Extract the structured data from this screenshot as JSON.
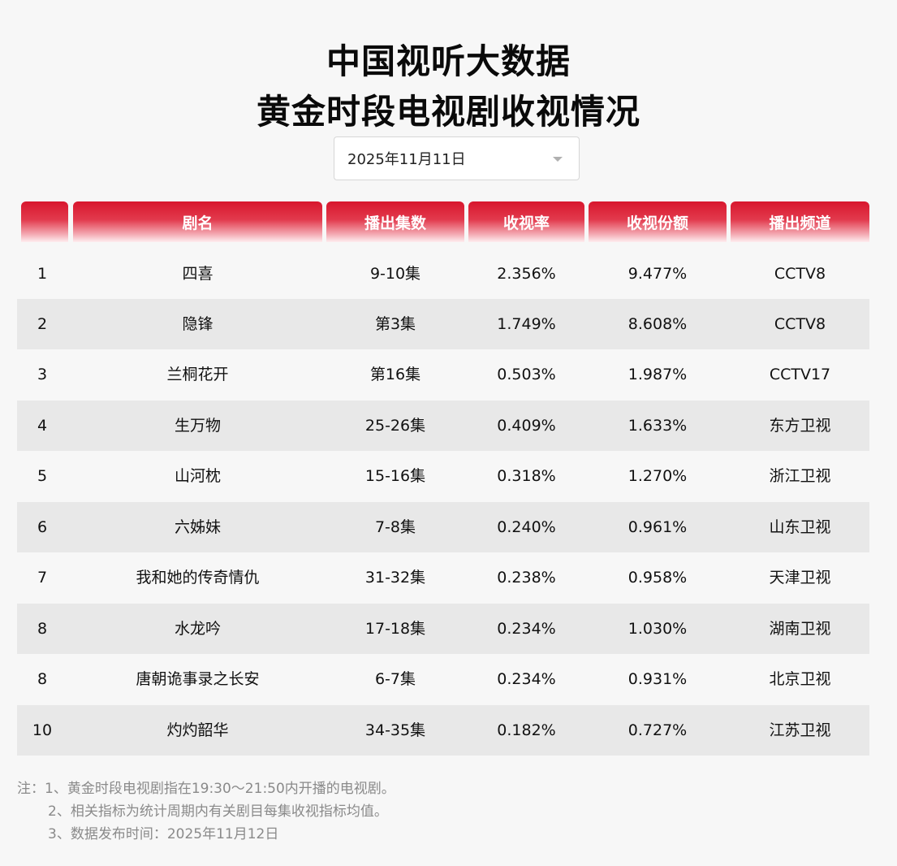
{
  "title": {
    "line1": "中国视听大数据",
    "line2": "黄金时段电视剧收视情况"
  },
  "date_select": {
    "value": "2025年11月11日"
  },
  "table": {
    "headers": {
      "rank": "",
      "name": "剧名",
      "episodes": "播出集数",
      "rating": "收视率",
      "share": "收视份额",
      "channel": "播出频道"
    },
    "rows": [
      {
        "rank": "1",
        "name": "四喜",
        "episodes": "9-10集",
        "rating": "2.356%",
        "share": "9.477%",
        "channel": "CCTV8"
      },
      {
        "rank": "2",
        "name": "隐锋",
        "episodes": "第3集",
        "rating": "1.749%",
        "share": "8.608%",
        "channel": "CCTV8"
      },
      {
        "rank": "3",
        "name": "兰桐花开",
        "episodes": "第16集",
        "rating": "0.503%",
        "share": "1.987%",
        "channel": "CCTV17"
      },
      {
        "rank": "4",
        "name": "生万物",
        "episodes": "25-26集",
        "rating": "0.409%",
        "share": "1.633%",
        "channel": "东方卫视"
      },
      {
        "rank": "5",
        "name": "山河枕",
        "episodes": "15-16集",
        "rating": "0.318%",
        "share": "1.270%",
        "channel": "浙江卫视"
      },
      {
        "rank": "6",
        "name": "六姊妹",
        "episodes": "7-8集",
        "rating": "0.240%",
        "share": "0.961%",
        "channel": "山东卫视"
      },
      {
        "rank": "7",
        "name": "我和她的传奇情仇",
        "episodes": "31-32集",
        "rating": "0.238%",
        "share": "0.958%",
        "channel": "天津卫视"
      },
      {
        "rank": "8",
        "name": "水龙吟",
        "episodes": "17-18集",
        "rating": "0.234%",
        "share": "1.030%",
        "channel": "湖南卫视"
      },
      {
        "rank": "8",
        "name": "唐朝诡事录之长安",
        "episodes": "6-7集",
        "rating": "0.234%",
        "share": "0.931%",
        "channel": "北京卫视"
      },
      {
        "rank": "10",
        "name": "灼灼韶华",
        "episodes": "34-35集",
        "rating": "0.182%",
        "share": "0.727%",
        "channel": "江苏卫视"
      }
    ]
  },
  "notes": {
    "line1": "注：1、黄金时段电视剧指在19:30～21:50内开播的电视剧。",
    "line2": "2、相关指标为统计周期内有关剧目每集收视指标均值。",
    "line3": "3、数据发布时间：2025年11月12日"
  },
  "colors": {
    "header_red": "#d8162d",
    "alt_row": "#e8e8e8",
    "background": "#f7f7f7",
    "note_text": "#8a8a8a"
  },
  "icons": {
    "date_dropdown": "chevron-down-icon"
  }
}
